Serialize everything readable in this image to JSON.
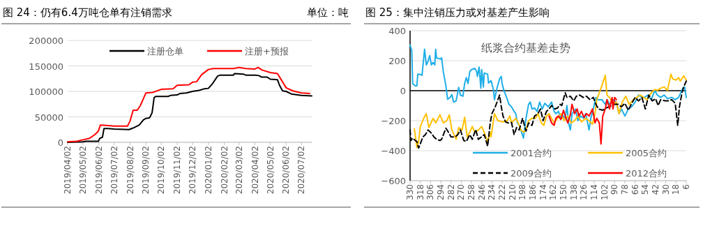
{
  "chart_data": [
    {
      "type": "line",
      "title": "图 24：仍有6.4万吨仓单有注销需求",
      "subtitle": "单位：吨",
      "xlim": [
        "2019-04-02",
        "2020-07-22"
      ],
      "xticks": [
        {
          "value": "2019-04-02",
          "label": "2019/04/02"
        },
        {
          "value": "2019-05-02",
          "label": "2019/05/02"
        },
        {
          "value": "2019-06-02",
          "label": "2019/06/02"
        },
        {
          "value": "2019-07-02",
          "label": "2019/07/02"
        },
        {
          "value": "2019-08-02",
          "label": "2019/08/02"
        },
        {
          "value": "2019-09-02",
          "label": "2019/09/02"
        },
        {
          "value": "2019-10-02",
          "label": "2019/10/02"
        },
        {
          "value": "2019-11-02",
          "label": "2019/11/02"
        },
        {
          "value": "2019-12-02",
          "label": "2019/12/02"
        },
        {
          "value": "2020-01-02",
          "label": "2020/01/02"
        },
        {
          "value": "2020-02-02",
          "label": "2020/02/02"
        },
        {
          "value": "2020-03-02",
          "label": "2020/03/02"
        },
        {
          "value": "2020-04-02",
          "label": "2020/04/02"
        },
        {
          "value": "2020-05-02",
          "label": "2020/05/02"
        },
        {
          "value": "2020-06-02",
          "label": "2020/06/02"
        },
        {
          "value": "2020-07-02",
          "label": "2020/07/02"
        }
      ],
      "ylim": [
        0,
        200000
      ],
      "yticks": [
        0,
        50000,
        100000,
        150000,
        200000
      ],
      "grid": "y",
      "legend": "top",
      "marker": "none",
      "series": [
        {
          "name": "注册仓单",
          "color": "#000000",
          "line_style": "solid",
          "x": [
            "2019-04-02",
            "2019-05-02",
            "2019-05-08",
            "2019-06-01",
            "2019-06-04",
            "2019-06-09",
            "2019-06-12",
            "2019-06-20",
            "2019-07-02",
            "2019-07-31",
            "2019-08-05",
            "2019-08-10",
            "2019-08-20",
            "2019-08-28",
            "2019-09-02",
            "2019-09-09",
            "2019-09-14",
            "2019-09-18",
            "2019-09-21",
            "2019-10-15",
            "2019-10-20",
            "2019-11-02",
            "2019-11-08",
            "2019-11-20",
            "2019-12-02",
            "2019-12-15",
            "2019-12-25",
            "2020-01-02",
            "2020-01-10",
            "2020-01-20",
            "2020-01-25",
            "2020-02-20",
            "2020-02-22",
            "2020-03-10",
            "2020-03-15",
            "2020-04-02",
            "2020-04-10",
            "2020-04-15",
            "2020-04-26",
            "2020-05-02",
            "2020-05-16",
            "2020-05-20",
            "2020-05-26",
            "2020-06-02",
            "2020-06-12",
            "2020-07-02",
            "2020-07-22"
          ],
          "values": [
            0,
            1000,
            2000,
            2000,
            8000,
            10000,
            27000,
            27000,
            26000,
            25000,
            27000,
            29000,
            34000,
            44000,
            47000,
            48000,
            58000,
            88000,
            90000,
            90000,
            92000,
            93000,
            96000,
            97000,
            100000,
            102000,
            105000,
            106000,
            115000,
            130000,
            132000,
            132000,
            135000,
            134000,
            132000,
            132000,
            131000,
            128000,
            128000,
            124000,
            123000,
            112000,
            101000,
            100000,
            95000,
            92000,
            91000
          ]
        },
        {
          "name": "注册+预报",
          "color": "#ff0000",
          "line_style": "solid",
          "x": [
            "2019-04-02",
            "2019-04-20",
            "2019-05-02",
            "2019-05-15",
            "2019-05-25",
            "2019-06-01",
            "2019-06-05",
            "2019-06-20",
            "2019-07-02",
            "2019-07-28",
            "2019-08-02",
            "2019-08-08",
            "2019-08-16",
            "2019-08-22",
            "2019-09-02",
            "2019-09-15",
            "2019-10-02",
            "2019-10-25",
            "2019-11-02",
            "2019-11-25",
            "2019-12-02",
            "2019-12-10",
            "2019-12-20",
            "2020-01-02",
            "2020-01-12",
            "2020-02-20",
            "2020-03-02",
            "2020-03-15",
            "2020-04-02",
            "2020-04-08",
            "2020-04-16",
            "2020-05-02",
            "2020-05-16",
            "2020-06-02",
            "2020-06-15",
            "2020-07-02",
            "2020-07-18"
          ],
          "values": [
            1000,
            2000,
            5000,
            8000,
            15000,
            22000,
            34000,
            33000,
            32000,
            32000,
            42000,
            63000,
            63000,
            72000,
            97000,
            98000,
            104000,
            105000,
            112000,
            113000,
            118000,
            119000,
            133000,
            143000,
            145000,
            145000,
            147000,
            145000,
            144000,
            147000,
            142000,
            137000,
            135000,
            107000,
            101000,
            97000,
            96000
          ]
        }
      ]
    },
    {
      "type": "line",
      "title": "图 25：集中注销压力或对基差产生影响",
      "annotations": [
        "纸浆合约基差走势"
      ],
      "xlim": [
        330,
        6
      ],
      "xticks": [
        330,
        318,
        306,
        294,
        282,
        270,
        258,
        246,
        234,
        222,
        210,
        198,
        186,
        174,
        162,
        150,
        138,
        126,
        114,
        102,
        90,
        78,
        66,
        54,
        42,
        30,
        18,
        6
      ],
      "ylim": [
        -600,
        400
      ],
      "yticks": [
        -600,
        -400,
        -200,
        0,
        200,
        400
      ],
      "grid": "y",
      "legend": "bottom",
      "marker": "none",
      "ref_lines": [
        {
          "axis": "y",
          "value": 0,
          "color": "#000000"
        }
      ],
      "series": [
        {
          "name": "2001合约",
          "color": "#1eaee8",
          "line_style": "solid",
          "x": [
            330,
            328,
            327,
            324,
            322,
            321,
            317,
            316,
            313,
            311,
            309,
            307,
            305,
            303,
            301,
            300,
            299,
            294,
            293,
            291,
            288,
            286,
            283,
            281,
            279,
            276,
            273,
            271,
            268,
            266,
            264,
            262,
            260,
            258,
            254,
            252,
            251,
            249,
            247,
            246,
            244,
            243,
            239,
            238,
            235,
            232,
            231,
            228,
            225,
            223,
            222,
            220,
            218,
            216,
            214,
            211,
            208,
            206,
            204,
            202,
            200,
            197,
            194,
            191,
            189,
            187,
            184,
            181,
            178,
            175,
            172,
            168,
            164,
            161,
            159,
            156,
            153,
            150,
            148,
            146,
            144,
            142,
            140,
            136,
            133,
            130,
            126,
            124,
            120,
            118,
            115,
            112,
            110,
            105,
            101,
            99,
            96,
            92,
            88,
            85,
            82,
            78,
            74,
            70,
            66,
            62,
            58,
            55,
            51,
            47,
            43,
            40,
            36,
            32,
            28,
            23,
            19,
            15,
            10,
            8,
            6
          ],
          "values": [
            304,
            265,
            48,
            33,
            33,
            110,
            107,
            102,
            277,
            172,
            195,
            234,
            172,
            188,
            172,
            276,
            219,
            211,
            219,
            126,
            33,
            -57,
            -45,
            -26,
            -76,
            -68,
            22,
            -29,
            -37,
            48,
            87,
            48,
            126,
            141,
            149,
            129,
            95,
            157,
            17,
            141,
            25,
            118,
            110,
            51,
            67,
            2,
            -60,
            17,
            79,
            95,
            48,
            2,
            -26,
            -57,
            -91,
            -107,
            -138,
            -153,
            -215,
            -231,
            -262,
            -316,
            -184,
            -91,
            -76,
            -122,
            -115,
            -138,
            -76,
            -122,
            -84,
            -107,
            -76,
            -138,
            -153,
            -138,
            -184,
            -169,
            -184,
            -99,
            -215,
            -262,
            -153,
            -122,
            -200,
            -169,
            -184,
            -153,
            -262,
            -184,
            -122,
            -45,
            -60,
            -60,
            -91,
            -60,
            -91,
            -60,
            -76,
            -153,
            -122,
            -169,
            -122,
            -107,
            -76,
            -29,
            -45,
            -45,
            -29,
            -60,
            2,
            -29,
            -45,
            -29,
            -53,
            -45,
            -60,
            -45,
            17,
            25,
            -45
          ]
        },
        {
          "name": "2005合约",
          "color": "#ffc000",
          "line_style": "solid",
          "x": [
            325,
            322,
            320,
            318,
            314,
            311,
            308,
            303,
            300,
            295,
            291,
            287,
            284,
            281,
            276,
            273,
            269,
            266,
            263,
            260,
            257,
            254,
            250,
            246,
            243,
            239,
            236,
            235,
            231,
            227,
            221,
            216,
            213,
            211,
            206,
            203,
            200,
            197,
            194,
            191,
            187,
            183,
            180,
            176,
            173,
            170,
            167,
            161,
            157,
            153,
            149,
            145,
            141,
            137,
            133,
            129,
            124,
            120,
            116,
            113,
            111,
            106,
            101,
            99,
            96,
            92,
            88,
            85,
            81,
            77,
            73,
            68,
            64,
            60,
            56,
            52,
            47,
            43,
            40,
            36,
            32,
            28,
            24,
            22,
            18,
            15,
            13,
            9,
            6
          ],
          "values": [
            -254,
            -378,
            -339,
            -239,
            -184,
            -153,
            -246,
            -184,
            -215,
            -161,
            -215,
            -200,
            -161,
            -262,
            -324,
            -246,
            -262,
            -177,
            -308,
            -277,
            -239,
            -277,
            -262,
            -239,
            -277,
            -345,
            -277,
            -308,
            -153,
            -200,
            -208,
            -200,
            -169,
            -215,
            -184,
            -215,
            -262,
            -277,
            -262,
            -200,
            -184,
            -184,
            -153,
            -215,
            -231,
            -169,
            -153,
            -215,
            -184,
            -153,
            -200,
            -169,
            -215,
            -200,
            -169,
            -208,
            -184,
            -200,
            -223,
            -153,
            -60,
            17,
            102,
            -29,
            -45,
            -91,
            -76,
            -153,
            -76,
            -37,
            -91,
            -60,
            -45,
            -29,
            -45,
            -60,
            -14,
            8,
            2,
            17,
            25,
            2,
            110,
            79,
            71,
            87,
            64,
            99,
            71
          ]
        },
        {
          "name": "2009合约",
          "color": "#000000",
          "line_style": "dashed",
          "x": [
            330,
            329,
            327,
            324,
            322,
            320,
            318,
            315,
            312,
            309,
            306,
            302,
            299,
            295,
            293,
            288,
            285,
            282,
            277,
            274,
            271,
            267,
            264,
            260,
            257,
            253,
            250,
            246,
            243,
            239,
            236,
            234,
            230,
            225,
            223,
            221,
            218,
            215,
            211,
            208,
            205,
            202,
            198,
            194,
            191,
            187,
            184,
            180,
            177,
            174,
            170,
            167,
            164,
            160,
            157,
            154,
            152,
            148,
            146,
            142,
            138,
            135,
            131,
            127,
            123,
            119,
            115,
            112,
            109,
            104,
            100,
            96,
            91,
            86,
            82,
            78,
            74,
            70,
            66,
            62,
            58,
            54,
            50,
            46,
            42,
            39,
            36,
            31,
            27,
            23,
            19,
            16,
            14,
            11,
            9,
            6
          ],
          "values": [
            -262,
            -332,
            -316,
            -332,
            -339,
            -383,
            -355,
            -308,
            -293,
            -262,
            -277,
            -308,
            -324,
            -332,
            -324,
            -250,
            -277,
            -308,
            -308,
            -293,
            -262,
            -332,
            -339,
            -293,
            -324,
            -259,
            -324,
            -308,
            -293,
            -370,
            -215,
            -153,
            -107,
            -29,
            -107,
            -169,
            -208,
            -215,
            -212,
            -293,
            -246,
            -262,
            -184,
            -270,
            -215,
            -231,
            -169,
            -153,
            -122,
            -200,
            -138,
            -122,
            -99,
            -122,
            -115,
            -91,
            -99,
            -14,
            -45,
            -37,
            -68,
            -37,
            -29,
            -45,
            -37,
            -60,
            -45,
            -91,
            -122,
            -130,
            -115,
            -107,
            -91,
            -91,
            -107,
            -84,
            -130,
            -84,
            -45,
            -68,
            -45,
            -122,
            -29,
            -68,
            -53,
            -99,
            -60,
            -68,
            -68,
            -60,
            -84,
            -231,
            -107,
            -14,
            25,
            64
          ]
        },
        {
          "name": "2012合约",
          "color": "#ff0000",
          "line_style": "solid",
          "x": [
            167,
            164,
            161,
            159,
            156,
            153,
            150,
            148,
            145,
            142,
            140,
            137,
            134,
            132,
            129,
            126,
            123,
            120,
            116,
            113,
            111,
            108,
            106,
            104,
            101,
            99,
            96,
            93,
            92,
            90,
            88
          ],
          "values": [
            -169,
            -215,
            -231,
            -184,
            -169,
            -192,
            -130,
            -169,
            -215,
            -161,
            -91,
            -153,
            -122,
            -169,
            -138,
            -177,
            -153,
            -169,
            -122,
            -215,
            -184,
            -215,
            -355,
            -169,
            -122,
            -60,
            -122,
            -45,
            -122,
            -45,
            -60
          ]
        }
      ]
    }
  ]
}
